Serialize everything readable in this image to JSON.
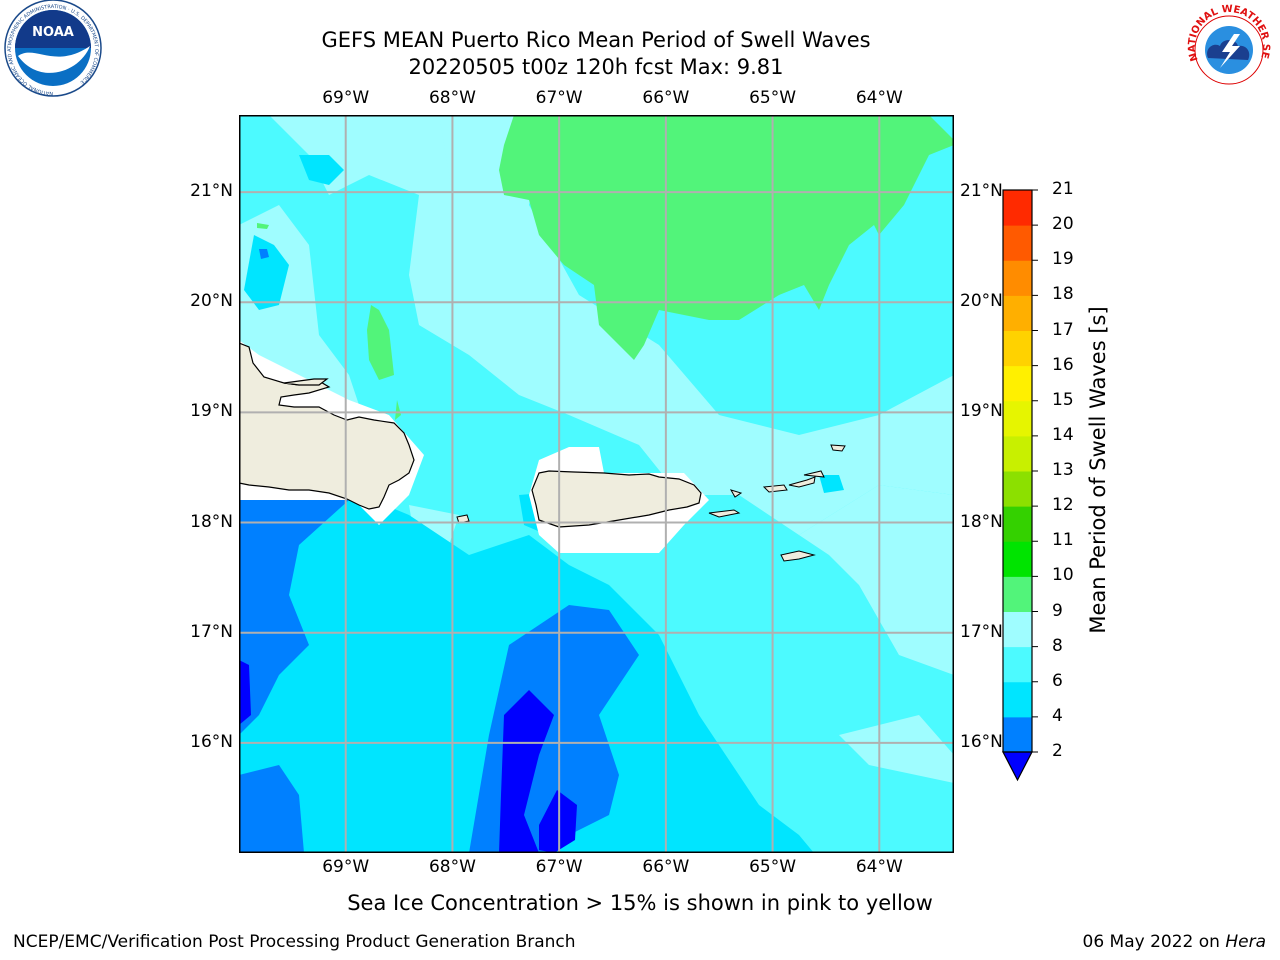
{
  "title": {
    "line1": "GEFS MEAN Puerto Rico Mean Period of Swell Waves",
    "line2": "20220505 t00z 120h fcst   Max: 9.81"
  },
  "map": {
    "lon_labels": [
      "69°W",
      "68°W",
      "67°W",
      "66°W",
      "65°W",
      "64°W"
    ],
    "lat_labels": [
      "21°N",
      "20°N",
      "19°N",
      "18°N",
      "17°N",
      "16°N"
    ],
    "lon_range": [
      -70.0,
      -63.3
    ],
    "lat_range": [
      15.0,
      21.7
    ],
    "colors": {
      "land": "#efedde",
      "band_2_4": "#0080ff",
      "band_4_6": "#00e5ff",
      "band_6_8": "#4cfaff",
      "band_8_9": "#9ffdff",
      "band_9_10": "#52f47a",
      "below_2": "#0000ff",
      "grid": "#b0b0b0"
    }
  },
  "colorbar": {
    "label": "Mean Period of Swell Waves [s]",
    "ticks": [
      "2",
      "4",
      "6",
      "8",
      "9",
      "10",
      "11",
      "12",
      "13",
      "14",
      "15",
      "16",
      "17",
      "18",
      "19",
      "20",
      "21"
    ],
    "colors": [
      "#0080ff",
      "#00e5ff",
      "#4cfaff",
      "#9ffdff",
      "#52f47a",
      "#00e400",
      "#34d100",
      "#8ce000",
      "#c8f000",
      "#e6f500",
      "#fff000",
      "#ffd200",
      "#ffaf00",
      "#ff8c00",
      "#ff5a00",
      "#ff2a00"
    ],
    "extend_color": "#0000ff"
  },
  "ice_note": "Sea Ice Concentration > 15% is shown in pink to yellow",
  "footer": {
    "left": "NCEP/EMC/Verification Post Processing Product Generation Branch",
    "date": "06 May 2022 on ",
    "host": "Hera"
  },
  "logos": {
    "noaa_text": "NOAA",
    "noaa_ring": "NATIONAL OCEANIC AND ATMOSPHERIC ADMINISTRATION · U.S. DEPARTMENT OF COMMERCE",
    "nws_ring": "NATIONAL WEATHER SERVICE"
  }
}
